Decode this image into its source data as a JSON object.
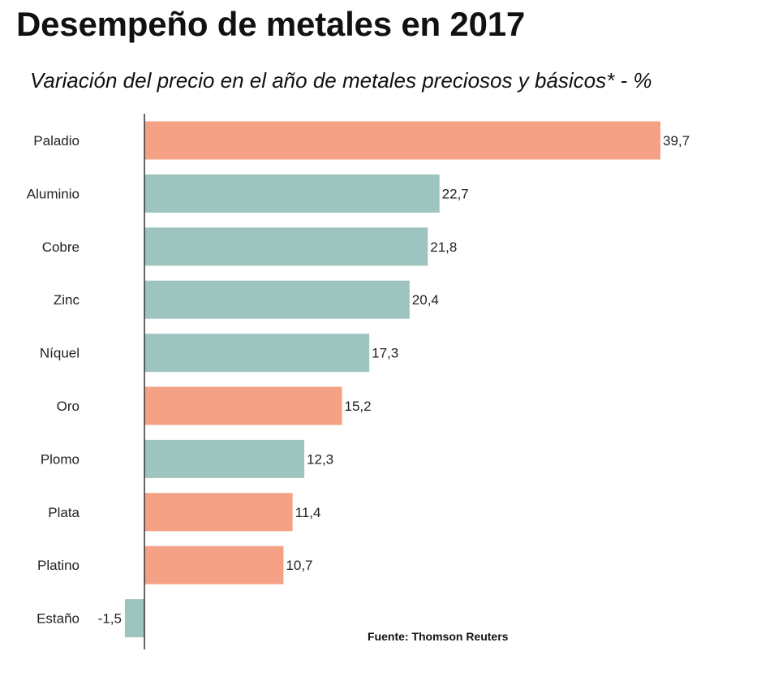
{
  "chart_data": {
    "type": "bar",
    "orientation": "horizontal",
    "title": "Desempeño de metales en 2017",
    "subtitle": "Variación del precio en el año de metales preciosos y básicos* - %",
    "source": "Fuente: Thomson Reuters",
    "categories": [
      "Paladio",
      "Aluminio",
      "Cobre",
      "Zinc",
      "Níquel",
      "Oro",
      "Plomo",
      "Plata",
      "Platino",
      "Estaño"
    ],
    "values": [
      39.7,
      22.7,
      21.8,
      20.4,
      17.3,
      15.2,
      12.3,
      11.4,
      10.7,
      -1.5
    ],
    "value_labels": [
      "39,7",
      "22,7",
      "21,8",
      "20,4",
      "17,3",
      "15,2",
      "12,3",
      "11,4",
      "10,7",
      "-1,5"
    ],
    "groups": [
      "precioso",
      "básico",
      "básico",
      "básico",
      "básico",
      "precioso",
      "básico",
      "precioso",
      "precioso",
      "básico"
    ],
    "colors": {
      "precioso": "#f4a186",
      "básico": "#9dc4be",
      "axis": "#333333"
    },
    "xlabel": "",
    "ylabel": "",
    "xlim": [
      -1.5,
      39.7
    ],
    "grid": false
  }
}
